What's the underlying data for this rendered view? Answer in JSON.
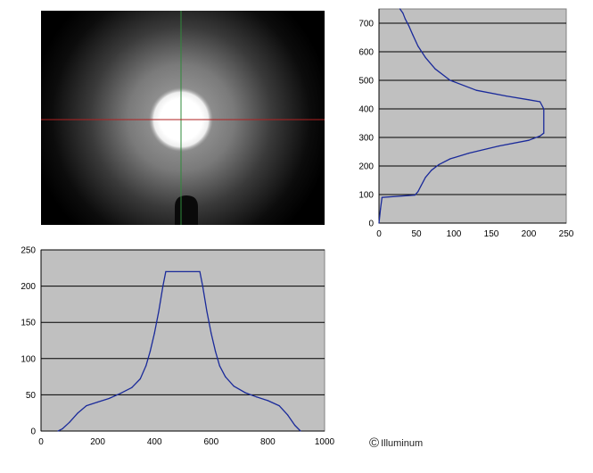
{
  "copyright": {
    "symbol": "©",
    "text": "Illuminum"
  },
  "beam_image": {
    "crosshair_vertical_color": "#2f8a3a",
    "crosshair_horizontal_color": "#b02020"
  },
  "chart_data": [
    {
      "type": "line",
      "orientation": "vertical-profile",
      "title": "",
      "xlabel": "",
      "ylabel": "",
      "xlim": [
        0,
        250
      ],
      "ylim": [
        0,
        750
      ],
      "x_ticks": [
        "0",
        "50",
        "100",
        "150",
        "200",
        "250"
      ],
      "y_ticks": [
        "0",
        "100",
        "200",
        "300",
        "400",
        "500",
        "600",
        "700"
      ],
      "grid": "horizontal",
      "background": "#c0c0c0",
      "line_color": "#1a2a9a",
      "series": [
        {
          "x": [
            0,
            2,
            4,
            48,
            52,
            56,
            62,
            70,
            80,
            95,
            120,
            160,
            200,
            215,
            220,
            220,
            215,
            200,
            170,
            130,
            95,
            75,
            62,
            52,
            45,
            40,
            35,
            32,
            28
          ],
          "y": [
            0,
            50,
            90,
            98,
            110,
            130,
            160,
            185,
            205,
            225,
            245,
            270,
            290,
            305,
            315,
            400,
            425,
            432,
            445,
            465,
            500,
            540,
            580,
            620,
            660,
            690,
            715,
            735,
            750
          ]
        }
      ]
    },
    {
      "type": "line",
      "orientation": "horizontal-profile",
      "title": "",
      "xlabel": "",
      "ylabel": "",
      "xlim": [
        0,
        1000
      ],
      "ylim": [
        0,
        250
      ],
      "x_ticks": [
        "0",
        "200",
        "400",
        "600",
        "800",
        "1000"
      ],
      "y_ticks": [
        "0",
        "50",
        "100",
        "150",
        "200",
        "250"
      ],
      "grid": "horizontal",
      "background": "#c0c0c0",
      "line_color": "#1a2a9a",
      "series": [
        {
          "x": [
            60,
            75,
            100,
            130,
            160,
            200,
            240,
            280,
            320,
            350,
            370,
            385,
            400,
            415,
            430,
            440,
            560,
            570,
            585,
            600,
            615,
            630,
            650,
            680,
            720,
            760,
            800,
            840,
            870,
            895,
            915
          ],
          "y": [
            0,
            3,
            12,
            25,
            35,
            40,
            45,
            52,
            60,
            72,
            90,
            110,
            135,
            165,
            200,
            220,
            220,
            200,
            165,
            135,
            110,
            90,
            75,
            62,
            53,
            47,
            42,
            35,
            22,
            8,
            0
          ]
        }
      ]
    }
  ]
}
